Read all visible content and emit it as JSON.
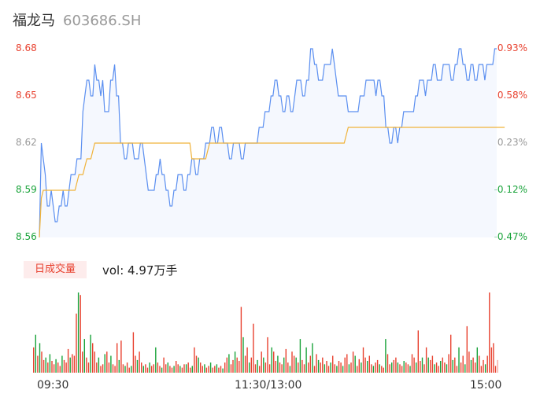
{
  "header": {
    "name": "福龙马",
    "code": "603686.SH"
  },
  "y_price_labels": [
    "8.68",
    "8.65",
    "8.62",
    "8.59",
    "8.56"
  ],
  "y_pct_labels": [
    "0.93%",
    "0.58%",
    "0.23%",
    "-0.12%",
    "-0.47%"
  ],
  "x_time_labels": [
    "09:30",
    "11:30/13:00",
    "15:00"
  ],
  "volume_tag": "日成交量",
  "volume_text": "vol: 4.97万手",
  "colors": {
    "up": "#e8412f",
    "down": "#19a33a",
    "neutral": "#999999",
    "price_line": "#5b8ff0",
    "avg_line": "#f0b33a"
  },
  "chart_data": {
    "type": "line",
    "x_labels": [
      "09:30",
      "11:30/13:00",
      "15:00"
    ],
    "ylim": [
      8.56,
      8.68
    ],
    "prev_close": 8.6,
    "series": [
      {
        "values": [
          8.56,
          8.62,
          8.61,
          8.6,
          8.58,
          8.58,
          8.59,
          8.58,
          8.57,
          8.57,
          8.58,
          8.58,
          8.59,
          8.58,
          8.58,
          8.59,
          8.6,
          8.6,
          8.6,
          8.61,
          8.61,
          8.61,
          8.64,
          8.65,
          8.66,
          8.66,
          8.65,
          8.65,
          8.67,
          8.66,
          8.66,
          8.65,
          8.66,
          8.64,
          8.64,
          8.64,
          8.66,
          8.66,
          8.67,
          8.65,
          8.65,
          8.62,
          8.62,
          8.61,
          8.61,
          8.62,
          8.62,
          8.62,
          8.61,
          8.61,
          8.61,
          8.62,
          8.62,
          8.61,
          8.6,
          8.59,
          8.59,
          8.59,
          8.59,
          8.6,
          8.6,
          8.61,
          8.6,
          8.6,
          8.59,
          8.59,
          8.58,
          8.58,
          8.59,
          8.59,
          8.6,
          8.6,
          8.6,
          8.59,
          8.59,
          8.6,
          8.6,
          8.61,
          8.61,
          8.6,
          8.6,
          8.61,
          8.61,
          8.61,
          8.62,
          8.62,
          8.62,
          8.63,
          8.63,
          8.62,
          8.62,
          8.63,
          8.63,
          8.62,
          8.62,
          8.62,
          8.61,
          8.61,
          8.62,
          8.62,
          8.62,
          8.62,
          8.61,
          8.61,
          8.62,
          8.62,
          8.62,
          8.62,
          8.62,
          8.62,
          8.62,
          8.63,
          8.63,
          8.63,
          8.64,
          8.64,
          8.64,
          8.65,
          8.65,
          8.66,
          8.66,
          8.65,
          8.65,
          8.64,
          8.64,
          8.65,
          8.65,
          8.64,
          8.64,
          8.65,
          8.66,
          8.66,
          8.66,
          8.65,
          8.65,
          8.66,
          8.66,
          8.68,
          8.68,
          8.67,
          8.67,
          8.66,
          8.66,
          8.66,
          8.67,
          8.67,
          8.67,
          8.67,
          8.68,
          8.67,
          8.66,
          8.65,
          8.65,
          8.65,
          8.65,
          8.65,
          8.64,
          8.64,
          8.64,
          8.64,
          8.64,
          8.64,
          8.65,
          8.65,
          8.65,
          8.66,
          8.66,
          8.66,
          8.66,
          8.66,
          8.65,
          8.66,
          8.66,
          8.65,
          8.65,
          8.63,
          8.63,
          8.62,
          8.62,
          8.63,
          8.63,
          8.62,
          8.63,
          8.63,
          8.64,
          8.64,
          8.64,
          8.64,
          8.64,
          8.64,
          8.65,
          8.65,
          8.66,
          8.66,
          8.66,
          8.65,
          8.66,
          8.66,
          8.66,
          8.67,
          8.67,
          8.66,
          8.66,
          8.66,
          8.67,
          8.67,
          8.67,
          8.67,
          8.66,
          8.66,
          8.67,
          8.67,
          8.68,
          8.68,
          8.67,
          8.67,
          8.66,
          8.66,
          8.67,
          8.67,
          8.66,
          8.66,
          8.67,
          8.67,
          8.67,
          8.66,
          8.67,
          8.67,
          8.67,
          8.67,
          8.68,
          8.68
        ]
      },
      {
        "values": [
          8.56,
          8.585,
          8.59,
          8.59,
          8.59,
          8.59,
          8.59,
          8.59,
          8.59,
          8.59,
          8.59,
          8.59,
          8.59,
          8.59,
          8.59,
          8.59,
          8.59,
          8.59,
          8.59,
          8.595,
          8.6,
          8.6,
          8.6,
          8.605,
          8.61,
          8.61,
          8.61,
          8.615,
          8.62,
          8.62,
          8.62,
          8.62,
          8.62,
          8.62,
          8.62,
          8.62,
          8.62,
          8.62,
          8.62,
          8.62,
          8.62,
          8.62,
          8.62,
          8.62,
          8.62,
          8.62,
          8.62,
          8.62,
          8.62,
          8.62,
          8.62,
          8.62,
          8.62,
          8.62,
          8.62,
          8.62,
          8.62,
          8.62,
          8.62,
          8.62,
          8.62,
          8.62,
          8.62,
          8.62,
          8.62,
          8.62,
          8.62,
          8.62,
          8.62,
          8.62,
          8.62,
          8.62,
          8.62,
          8.62,
          8.62,
          8.62,
          8.62,
          8.61,
          8.61,
          8.61,
          8.61,
          8.61,
          8.61,
          8.61,
          8.61,
          8.615,
          8.62,
          8.62,
          8.62,
          8.62,
          8.62,
          8.62,
          8.62,
          8.62,
          8.62,
          8.62,
          8.62,
          8.62,
          8.62,
          8.62,
          8.62,
          8.62,
          8.62,
          8.62,
          8.62,
          8.62,
          8.62,
          8.62,
          8.62,
          8.62,
          8.62,
          8.62,
          8.62,
          8.62,
          8.62,
          8.62,
          8.62,
          8.62,
          8.62,
          8.62,
          8.62,
          8.62,
          8.62,
          8.62,
          8.62,
          8.62,
          8.62,
          8.62,
          8.62,
          8.62,
          8.62,
          8.62,
          8.62,
          8.62,
          8.62,
          8.62,
          8.62,
          8.62,
          8.62,
          8.62,
          8.62,
          8.62,
          8.62,
          8.62,
          8.62,
          8.62,
          8.62,
          8.62,
          8.62,
          8.62,
          8.62,
          8.62,
          8.62,
          8.62,
          8.62,
          8.625,
          8.63,
          8.63,
          8.63,
          8.63,
          8.63,
          8.63,
          8.63,
          8.63,
          8.63,
          8.63,
          8.63,
          8.63,
          8.63,
          8.63,
          8.63,
          8.63,
          8.63,
          8.63,
          8.63,
          8.63,
          8.63,
          8.63,
          8.63,
          8.63,
          8.63,
          8.63,
          8.63,
          8.63,
          8.63,
          8.63,
          8.63,
          8.63,
          8.63,
          8.63,
          8.63,
          8.63,
          8.63,
          8.63,
          8.63,
          8.63,
          8.63,
          8.63,
          8.63,
          8.63,
          8.63,
          8.63,
          8.63,
          8.63,
          8.63,
          8.63,
          8.63,
          8.63,
          8.63,
          8.63,
          8.63,
          8.63,
          8.63,
          8.63,
          8.63,
          8.63,
          8.63,
          8.63,
          8.63,
          8.63,
          8.63,
          8.63,
          8.63,
          8.63,
          8.63,
          8.63,
          8.63,
          8.63,
          8.63,
          8.63,
          8.63,
          8.63,
          8.63,
          8.63,
          8.63,
          8.63
        ]
      }
    ],
    "volume": {
      "values": [
        30,
        45,
        20,
        35,
        25,
        15,
        18,
        12,
        22,
        14,
        10,
        16,
        12,
        8,
        20,
        15,
        12,
        28,
        18,
        22,
        20,
        70,
        95,
        92,
        25,
        40,
        18,
        12,
        45,
        35,
        25,
        12,
        18,
        8,
        10,
        22,
        25,
        12,
        20,
        10,
        8,
        35,
        15,
        38,
        10,
        8,
        12,
        6,
        8,
        48,
        20,
        15,
        25,
        12,
        8,
        10,
        6,
        12,
        8,
        10,
        30,
        12,
        8,
        6,
        18,
        10,
        12,
        8,
        6,
        8,
        14,
        10,
        8,
        6,
        10,
        10,
        12,
        6,
        8,
        30,
        20,
        18,
        12,
        8,
        10,
        6,
        8,
        12,
        6,
        8,
        10,
        6,
        8,
        5,
        12,
        18,
        22,
        10,
        15,
        25,
        18,
        14,
        78,
        42,
        20,
        30,
        12,
        18,
        58,
        10,
        15,
        8,
        25,
        18,
        12,
        42,
        10,
        30,
        25,
        14,
        20,
        12,
        10,
        18,
        28,
        12,
        8,
        25,
        20,
        18,
        12,
        40,
        15,
        10,
        30,
        12,
        20,
        35,
        8,
        22,
        15,
        12,
        18,
        10,
        14,
        8,
        12,
        20,
        10,
        8,
        14,
        12,
        8,
        18,
        22,
        10,
        12,
        25,
        20,
        8,
        16,
        12,
        30,
        18,
        14,
        20,
        10,
        8,
        12,
        15,
        10,
        8,
        6,
        40,
        22,
        10,
        12,
        15,
        18,
        12,
        10,
        8,
        14,
        12,
        10,
        8,
        22,
        18,
        12,
        50,
        14,
        18,
        10,
        30,
        18,
        15,
        20,
        10,
        12,
        8,
        14,
        18,
        12,
        10,
        22,
        45,
        15,
        18,
        8,
        30,
        12,
        20,
        10,
        55,
        25,
        15,
        18,
        12,
        30,
        20,
        8,
        15,
        10,
        20,
        95,
        30,
        35,
        8,
        15
      ],
      "colors": [
        "r",
        "g",
        "r",
        "g",
        "r",
        "r",
        "g",
        "r",
        "g",
        "r",
        "r",
        "g",
        "r",
        "r",
        "g",
        "r",
        "r",
        "r",
        "g",
        "r",
        "r",
        "r",
        "g",
        "r",
        "r",
        "g",
        "r",
        "r",
        "g",
        "r",
        "r",
        "r",
        "g",
        "r",
        "r",
        "g",
        "r",
        "r",
        "g",
        "r",
        "r",
        "r",
        "g",
        "r",
        "r",
        "g",
        "r",
        "r",
        "g",
        "r",
        "r",
        "g",
        "r",
        "r",
        "g",
        "r",
        "r",
        "g",
        "r",
        "r",
        "g",
        "r",
        "r",
        "g",
        "r",
        "r",
        "g",
        "r",
        "r",
        "g",
        "r",
        "r",
        "g",
        "r",
        "r",
        "g",
        "r",
        "r",
        "g",
        "r",
        "r",
        "g",
        "r",
        "r",
        "g",
        "r",
        "r",
        "g",
        "r",
        "r",
        "g",
        "r",
        "r",
        "g",
        "r",
        "r",
        "g",
        "r",
        "r",
        "g",
        "r",
        "r",
        "r",
        "g",
        "r",
        "r",
        "g",
        "r",
        "r",
        "r",
        "g",
        "r",
        "r",
        "g",
        "r",
        "r",
        "r",
        "g",
        "r",
        "r",
        "g",
        "r",
        "r",
        "g",
        "r",
        "r",
        "g",
        "r",
        "r",
        "g",
        "r",
        "g",
        "r",
        "r",
        "g",
        "r",
        "r",
        "g",
        "r",
        "r",
        "g",
        "r",
        "r",
        "g",
        "r",
        "r",
        "g",
        "r",
        "r",
        "g",
        "r",
        "r",
        "g",
        "r",
        "r",
        "g",
        "r",
        "r",
        "g",
        "r",
        "r",
        "g",
        "r",
        "r",
        "g",
        "r",
        "r",
        "g",
        "r",
        "r",
        "g",
        "r",
        "r",
        "g",
        "r",
        "r",
        "g",
        "r",
        "r",
        "g",
        "r",
        "r",
        "g",
        "r",
        "r",
        "g",
        "r",
        "r",
        "g",
        "r",
        "r",
        "g",
        "r",
        "r",
        "g",
        "r",
        "r",
        "g",
        "r",
        "r",
        "g",
        "r",
        "r",
        "g",
        "r",
        "r",
        "g",
        "r",
        "r",
        "g",
        "r",
        "r",
        "g",
        "r",
        "r",
        "g",
        "r",
        "r",
        "g",
        "r",
        "r",
        "r",
        "g",
        "r",
        "r"
      ]
    }
  }
}
